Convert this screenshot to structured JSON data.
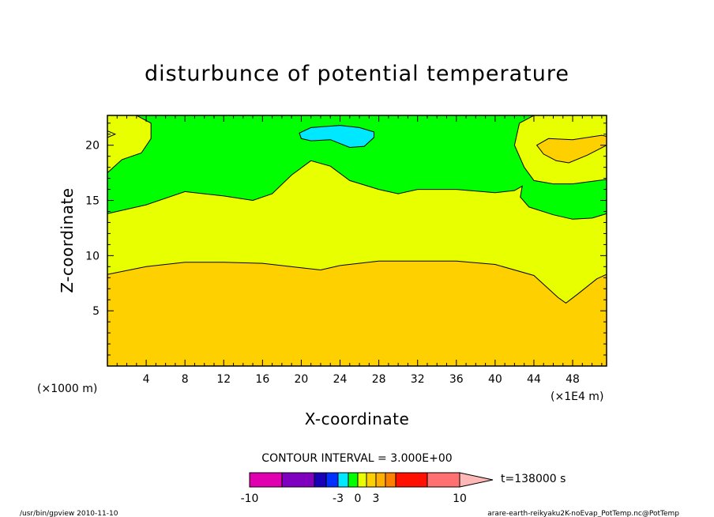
{
  "chart_data": {
    "type": "heatmap",
    "title": "disturbunce of potential temperature",
    "xlabel": "X-coordinate",
    "ylabel": "Z-coordinate",
    "x_unit_left": "(×1000 m)",
    "x_unit_right": "(×1E4 m)",
    "x_ticks": [
      "4",
      "8",
      "12",
      "16",
      "20",
      "24",
      "28",
      "32",
      "36",
      "40",
      "44",
      "48"
    ],
    "y_ticks": [
      "5",
      "10",
      "15",
      "20"
    ],
    "xlim": [
      0,
      51.5
    ],
    "ylim": [
      0,
      22.7
    ],
    "contour_interval_label": "CONTOUR INTERVAL = 3.000E+00",
    "time_label": "t=138000 s",
    "colorbar_labels": [
      "-10",
      "-3",
      "0",
      "3",
      "10"
    ],
    "colorbar_colors": [
      "#e000b0",
      "#8000c0",
      "#1800b8",
      "#0030ff",
      "#00e8ff",
      "#00ff00",
      "#e8ff00",
      "#ffd000",
      "#ffb000",
      "#ff8000",
      "#ff1000",
      "#ff7070",
      "#ffb8b8"
    ],
    "colors": {
      "level_1": "#00ff00",
      "level_2": "#e8ff00",
      "level_3": "#ffd000",
      "cyan_patch": "#00e8ff"
    },
    "boundaries": {
      "boundary_level3_level2": [
        [
          0,
          8.3
        ],
        [
          4,
          9.0
        ],
        [
          8,
          9.4
        ],
        [
          12,
          9.4
        ],
        [
          16,
          9.3
        ],
        [
          20,
          8.9
        ],
        [
          22,
          8.7
        ],
        [
          24,
          9.1
        ],
        [
          28,
          9.5
        ],
        [
          32,
          9.5
        ],
        [
          36,
          9.5
        ],
        [
          40,
          9.2
        ],
        [
          44,
          8.2
        ],
        [
          46.5,
          6.2
        ],
        [
          47.3,
          5.7
        ],
        [
          48.5,
          6.5
        ],
        [
          50.5,
          7.9
        ],
        [
          51.5,
          8.3
        ]
      ],
      "boundary_level2_level1": [
        [
          0,
          13.8
        ],
        [
          4,
          14.6
        ],
        [
          8,
          15.8
        ],
        [
          12,
          15.4
        ],
        [
          15,
          15.0
        ],
        [
          17,
          15.6
        ],
        [
          19,
          17.3
        ],
        [
          21,
          18.6
        ],
        [
          23,
          18.1
        ],
        [
          25,
          16.8
        ],
        [
          28,
          16.0
        ],
        [
          30,
          15.6
        ],
        [
          32,
          16.0
        ],
        [
          36,
          16.0
        ],
        [
          40,
          15.7
        ],
        [
          42,
          15.9
        ],
        [
          42.8,
          16.3
        ],
        [
          42.6,
          15.3
        ],
        [
          43.5,
          14.4
        ],
        [
          46,
          13.7
        ],
        [
          48,
          13.3
        ],
        [
          50,
          13.4
        ],
        [
          51.5,
          13.8
        ]
      ],
      "upper_left_patch": [
        [
          0,
          17.5
        ],
        [
          1.5,
          18.7
        ],
        [
          3.5,
          19.3
        ],
        [
          4.5,
          20.6
        ],
        [
          4.5,
          22.0
        ],
        [
          3,
          22.7
        ],
        [
          0,
          22.7
        ]
      ],
      "upper_right_patch": [
        [
          44,
          22.7
        ],
        [
          42.5,
          22.0
        ],
        [
          42.0,
          20.0
        ],
        [
          43.0,
          18.0
        ],
        [
          44,
          16.8
        ],
        [
          46,
          16.5
        ],
        [
          48,
          16.5
        ],
        [
          51.5,
          16.9
        ],
        [
          51.5,
          22.7
        ]
      ],
      "upper_right_inner": [
        [
          44.3,
          20.0
        ],
        [
          45.5,
          20.6
        ],
        [
          48,
          20.5
        ],
        [
          51,
          20.9
        ],
        [
          51.5,
          20.8
        ],
        [
          51.5,
          20.0
        ],
        [
          49.5,
          19.1
        ],
        [
          47.6,
          18.4
        ],
        [
          46.3,
          18.6
        ],
        [
          45.0,
          19.2
        ]
      ],
      "cyan_patch": [
        [
          19.8,
          21.1
        ],
        [
          21,
          21.6
        ],
        [
          24,
          21.8
        ],
        [
          26,
          21.6
        ],
        [
          27.5,
          21.2
        ],
        [
          27.5,
          20.7
        ],
        [
          26.5,
          19.9
        ],
        [
          25,
          19.8
        ],
        [
          23,
          20.5
        ],
        [
          21,
          20.4
        ],
        [
          20,
          20.6
        ]
      ],
      "left_edge_tick": [
        [
          0,
          20.7
        ],
        [
          0.8,
          21.0
        ],
        [
          0,
          21.3
        ]
      ]
    },
    "footer_left": "/usr/bin/gpview   2010-11-10",
    "footer_right": "arare-earth-reikyaku2K-noEvap_PotTemp.nc@PotTemp"
  }
}
